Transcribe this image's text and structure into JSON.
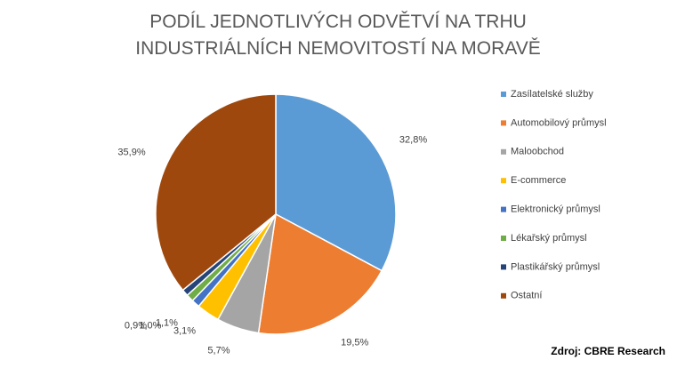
{
  "chart_data": {
    "type": "pie",
    "title": "PODÍL JEDNOTLIVÝCH ODVĚTVÍ NA TRHU INDUSTRIÁLNÍCH NEMOVITOSTÍ NA MORAVĚ",
    "categories": [
      "Zasílatelské služby",
      "Automobilový průmysl",
      "Maloobchod",
      "E-commerce",
      "Elektronický průmysl",
      "Lékařský průmysl",
      "Plastikářský průmysl",
      "Ostatní"
    ],
    "values": [
      32.8,
      19.5,
      5.7,
      3.1,
      1.1,
      1.0,
      0.9,
      35.9
    ],
    "value_labels": [
      "32,8%",
      "19,5%",
      "5,7%",
      "3,1%",
      "1,1%",
      "1,0%",
      "0,9%",
      "35,9%"
    ],
    "colors": [
      "#5b9bd5",
      "#ed7d31",
      "#a5a5a5",
      "#ffc000",
      "#4472c4",
      "#70ad47",
      "#264478",
      "#9e480e"
    ],
    "legend": "right",
    "source": "Zdroj: CBRE Research"
  }
}
